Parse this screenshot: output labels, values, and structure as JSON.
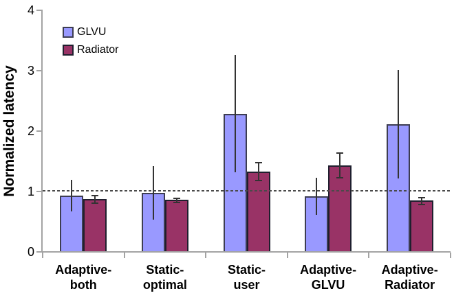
{
  "colors": {
    "background": "#ffffff",
    "axis": "#a3a3a3",
    "text": "#000000",
    "error_bar": "#333333",
    "reference_line": "#4a4a4a",
    "glvu_fill": "#9999ff",
    "glvu_border": "#3d3d52",
    "radiator_fill": "#993366",
    "radiator_border": "#1f1f2e"
  },
  "chart_data": {
    "type": "bar",
    "title": "",
    "xlabel": "",
    "ylabel": "Normalized latency",
    "ylim": [
      0,
      4
    ],
    "yticks": [
      0,
      1,
      2,
      3,
      4
    ],
    "grid": false,
    "legend_position": "top-left-inside",
    "reference_line": {
      "y": 1.0,
      "style": "dashed"
    },
    "categories": [
      "Adaptive-\nboth",
      "Static-\noptimal",
      "Static-\nuser",
      "Adaptive-\nGLVU",
      "Adaptive-\nRadiator"
    ],
    "series": [
      {
        "name": "GLVU",
        "fill": "#9999ff",
        "border": "#3d3d52",
        "error_caps": false,
        "values": [
          0.92,
          0.97,
          2.27,
          0.91,
          2.1
        ],
        "error_low": [
          0.66,
          0.52,
          1.31,
          0.6,
          1.2
        ],
        "error_high": [
          1.18,
          1.41,
          3.25,
          1.22,
          3.0
        ]
      },
      {
        "name": "Radiator",
        "fill": "#993366",
        "border": "#1f1f2e",
        "error_caps": true,
        "values": [
          0.86,
          0.85,
          1.32,
          1.42,
          0.84
        ],
        "error_low": [
          0.79,
          0.81,
          1.17,
          1.22,
          0.77
        ],
        "error_high": [
          0.92,
          0.88,
          1.47,
          1.62,
          0.89
        ]
      }
    ]
  }
}
